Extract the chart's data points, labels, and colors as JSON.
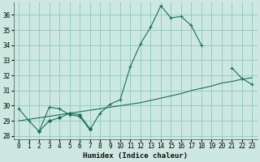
{
  "title": "",
  "xlabel": "Humidex (Indice chaleur)",
  "background_color": "#cce8e0",
  "grid_color": "#88ccbb",
  "line_color": "#1a6e5a",
  "xlim": [
    -0.5,
    23.5
  ],
  "ylim": [
    27.8,
    36.8
  ],
  "yticks": [
    28,
    29,
    30,
    31,
    32,
    33,
    34,
    35,
    36
  ],
  "xticks": [
    0,
    1,
    2,
    3,
    4,
    5,
    6,
    7,
    8,
    9,
    10,
    11,
    12,
    13,
    14,
    15,
    16,
    17,
    18,
    19,
    20,
    21,
    22,
    23
  ],
  "line1": [
    29.8,
    29.0,
    28.3,
    29.9,
    29.8,
    29.4,
    29.3,
    28.4,
    29.5,
    30.1,
    30.4,
    32.6,
    34.1,
    35.2,
    36.6,
    35.8,
    35.9,
    35.3,
    34.0,
    null,
    null,
    32.5,
    31.8,
    31.4
  ],
  "line2": [
    null,
    null,
    28.3,
    29.0,
    29.2,
    29.5,
    29.4,
    28.5,
    null,
    null,
    null,
    null,
    null,
    null,
    null,
    null,
    null,
    null,
    null,
    null,
    null,
    null,
    null,
    null
  ],
  "line3": [
    29.0,
    29.1,
    29.2,
    29.3,
    29.4,
    29.5,
    29.6,
    29.7,
    29.8,
    29.9,
    30.0,
    30.1,
    30.2,
    30.35,
    30.5,
    30.65,
    30.8,
    31.0,
    31.15,
    31.3,
    31.5,
    31.6,
    31.75,
    31.85
  ]
}
